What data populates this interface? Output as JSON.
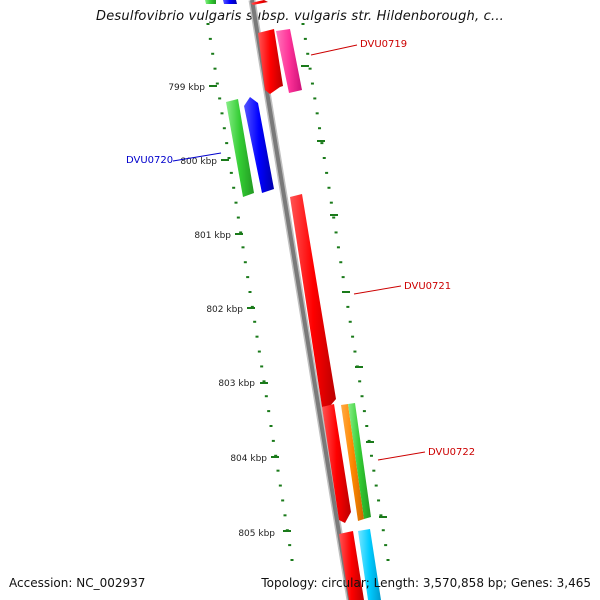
{
  "header": {
    "title": "Desulfovibrio vulgaris subsp. vulgaris str. Hildenborough, c..."
  },
  "footer": {
    "accession": "Accession: NC_002937",
    "summary": "Topology: circular; Length: 3,570,858 bp; Genes: 3,465"
  },
  "map": {
    "ticks": [
      "799 kbp",
      "800 kbp",
      "801 kbp",
      "802 kbp",
      "803 kbp",
      "804 kbp",
      "805 kbp"
    ],
    "genes": [
      {
        "id": "DVU0719",
        "color": "#cc0000"
      },
      {
        "id": "DVU0720",
        "color": "#0000cc"
      },
      {
        "id": "DVU0721",
        "color": "#cc0000"
      },
      {
        "id": "DVU0722",
        "color": "#cc0000"
      }
    ],
    "colors": {
      "backbone": "#808080",
      "ticks": "#1a7a1a",
      "red": "#ff0000",
      "pink": "#ff3399",
      "green": "#33cc33",
      "blue": "#0000ff",
      "orange": "#ff8800",
      "cyan": "#00ccff"
    }
  }
}
